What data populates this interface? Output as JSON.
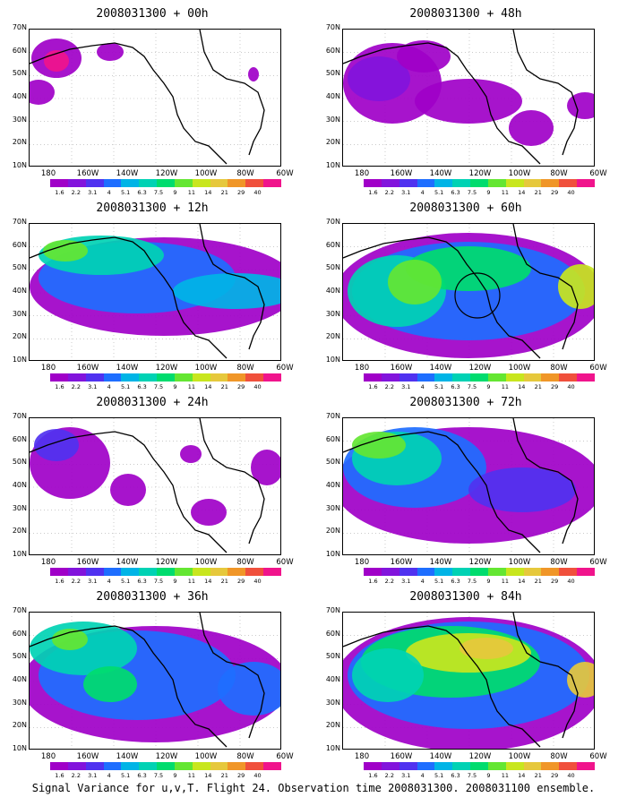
{
  "caption": "Signal Variance for u,v,T. Flight 24. Observation time 2008031300. 2008031100 ensemble.",
  "lat_labels": [
    "70N",
    "60N",
    "50N",
    "40N",
    "30N",
    "20N",
    "10N"
  ],
  "lon_labels": [
    "180",
    "160W",
    "140W",
    "120W",
    "100W",
    "80W",
    "60W"
  ],
  "colorbar": {
    "labels": [
      "1.6",
      "2.2",
      "3.1",
      "4",
      "5.1",
      "6.3",
      "7.5",
      "9",
      "11",
      "14",
      "21",
      "29",
      "40"
    ],
    "colors": [
      "#a000c8",
      "#8214dc",
      "#5032f0",
      "#1e6eff",
      "#00b4e6",
      "#00d2b4",
      "#00dc6e",
      "#64e632",
      "#c8e61e",
      "#e6c83c",
      "#f09628",
      "#f0503c",
      "#f0148c"
    ]
  },
  "panels": [
    {
      "title": "2008031300 + 00h",
      "level": 0
    },
    {
      "title": "2008031300 + 48h",
      "level": 4
    },
    {
      "title": "2008031300 + 12h",
      "level": 1
    },
    {
      "title": "2008031300 + 60h",
      "level": 5
    },
    {
      "title": "2008031300 + 24h",
      "level": 2
    },
    {
      "title": "2008031300 + 72h",
      "level": 6
    },
    {
      "title": "2008031300 + 36h",
      "level": 3
    },
    {
      "title": "2008031300 + 84h",
      "level": 7
    }
  ]
}
